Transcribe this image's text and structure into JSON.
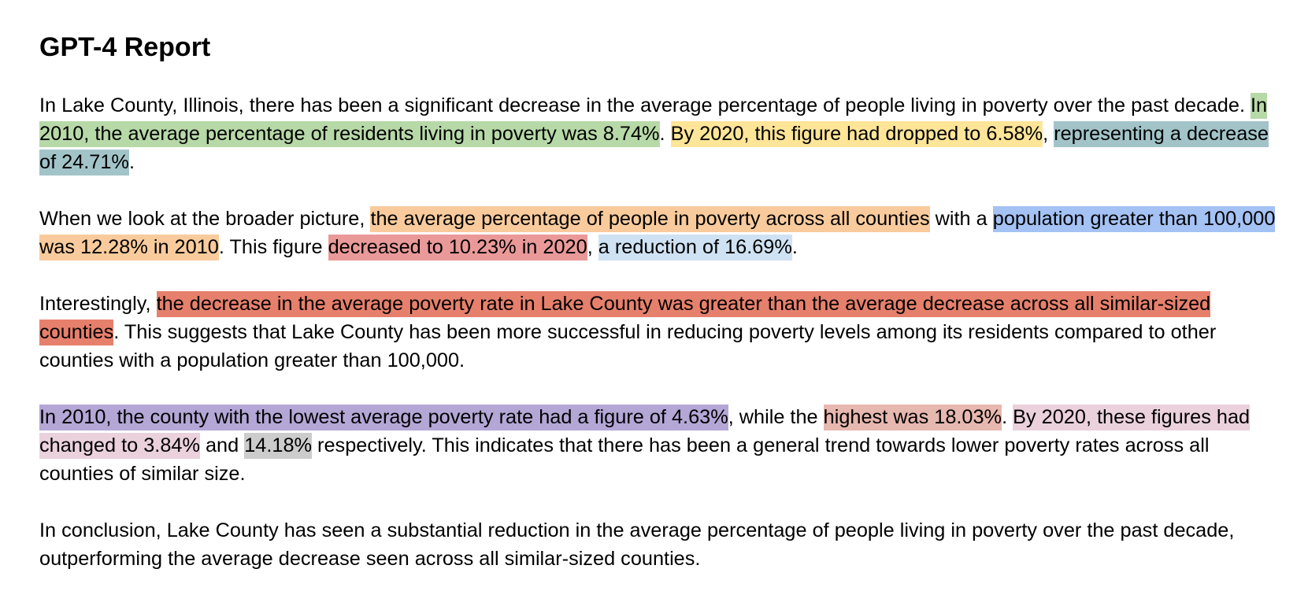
{
  "document": {
    "title": "GPT-4 Report",
    "paragraphs": [
      {
        "segments": [
          {
            "text": "In Lake County, Illinois, there has been a significant decrease in the average percentage of people living in poverty over the past decade. "
          },
          {
            "text": "In 2010, the average percentage of residents living in poverty was 8.74%",
            "highlight": "#b7d9a8"
          },
          {
            "text": ". "
          },
          {
            "text": "By 2020, this figure had dropped to 6.58%",
            "highlight": "#ffe598"
          },
          {
            "text": ", "
          },
          {
            "text": "representing a decrease of 24.71%",
            "highlight": "#a2c4c9"
          },
          {
            "text": "."
          }
        ]
      },
      {
        "segments": [
          {
            "text": "When we look at the broader picture, "
          },
          {
            "text": "the average percentage of people in poverty across all counties",
            "highlight": "#f9cb9c"
          },
          {
            "text": " with a "
          },
          {
            "text": "population greater than 100,000",
            "highlight": "#a4c2f4"
          },
          {
            "text": " "
          },
          {
            "text": "was 12.28% in 2010",
            "highlight": "#f9cb9c"
          },
          {
            "text": ". This figure "
          },
          {
            "text": "decreased to 10.23% in 2020",
            "highlight": "#ea9999"
          },
          {
            "text": ", "
          },
          {
            "text": "a reduction of 16.69%",
            "highlight": "#cfe2f3"
          },
          {
            "text": "."
          }
        ]
      },
      {
        "segments": [
          {
            "text": "Interestingly, "
          },
          {
            "text": "the decrease in the average poverty rate in Lake County was greater than the average decrease across all similar-sized counties",
            "highlight": "#e6806c"
          },
          {
            "text": ". This suggests that Lake County has been more successful in reducing poverty levels among its residents compared to other counties with a population greater than 100,000."
          }
        ]
      },
      {
        "segments": [
          {
            "text": "In 2010, the county with the lowest average poverty rate had a figure of 4.63%",
            "highlight": "#b4a7d6"
          },
          {
            "text": ", while the "
          },
          {
            "text": "highest was 18.03%",
            "highlight": "#e6b8af"
          },
          {
            "text": ". "
          },
          {
            "text": "By 2020, these figures had changed to 3.84%",
            "highlight": "#ead1dc"
          },
          {
            "text": " and "
          },
          {
            "text": "14.18%",
            "highlight": "#cccccc"
          },
          {
            "text": " respectively. This indicates that there has been a general trend towards lower poverty rates across all counties of similar size."
          }
        ]
      },
      {
        "segments": [
          {
            "text": "In conclusion, Lake County has seen a substantial reduction in the average percentage of people living in poverty over the past decade, outperforming the average decrease seen across all similar-sized counties."
          }
        ]
      }
    ]
  }
}
